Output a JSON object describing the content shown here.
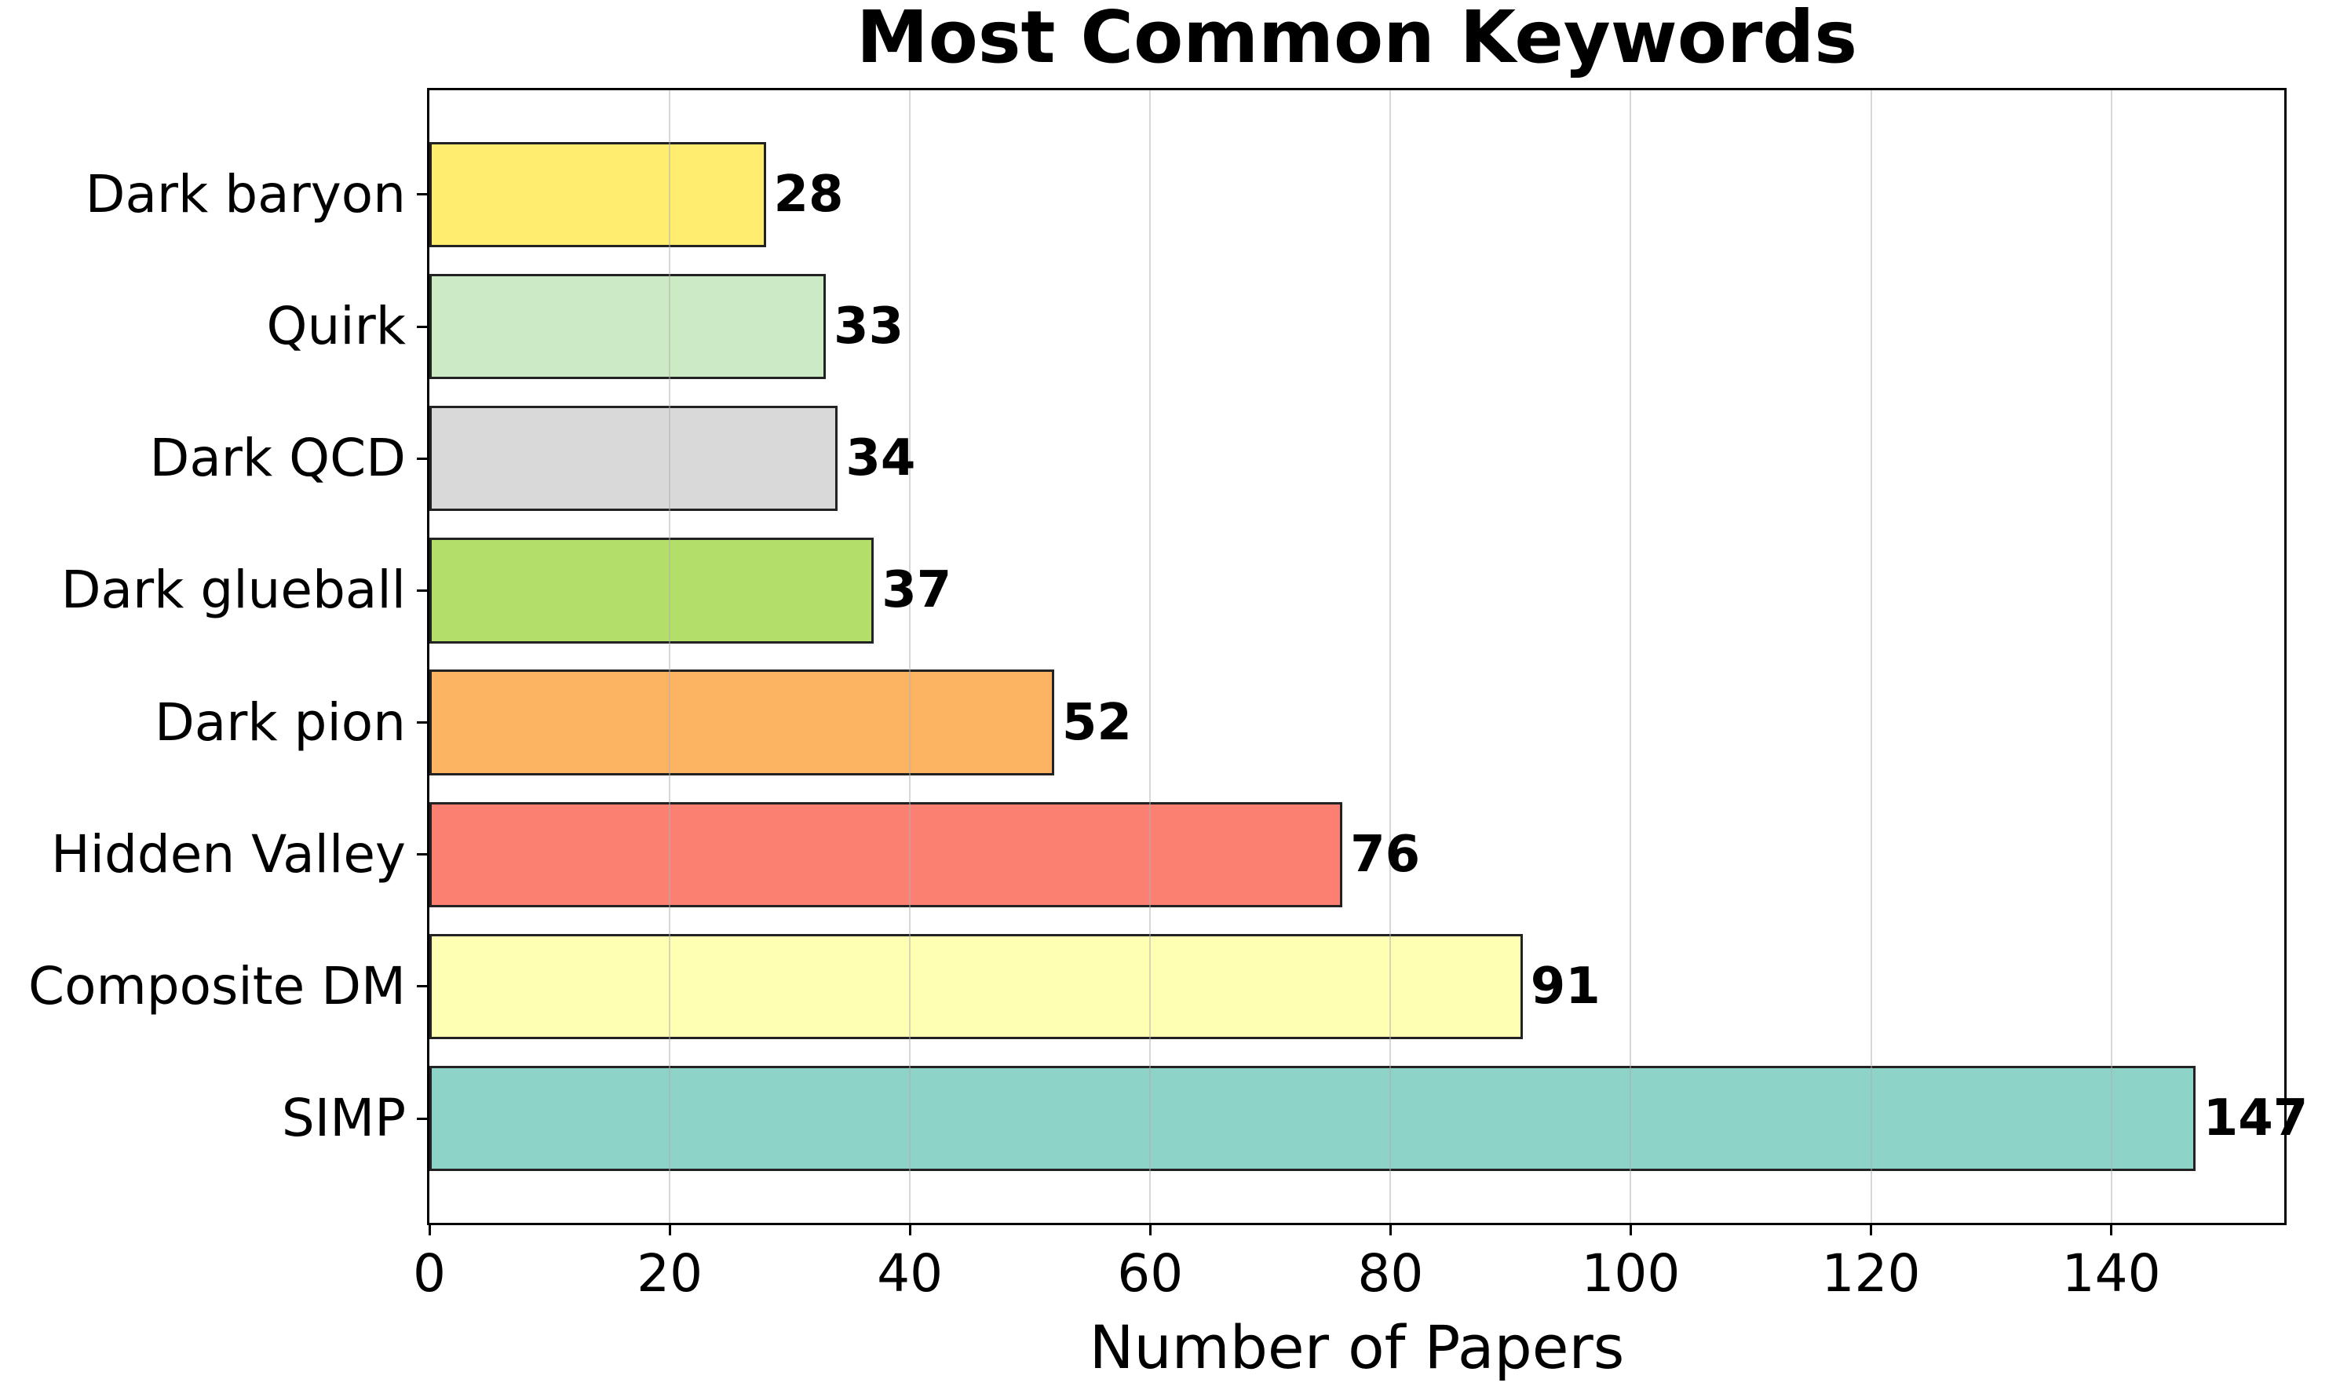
{
  "chart_data": {
    "type": "bar",
    "orientation": "horizontal",
    "title": "Most Common Keywords",
    "xlabel": "Number of Papers",
    "ylabel": "",
    "categories": [
      "Dark baryon",
      "Quirk",
      "Dark QCD",
      "Dark glueball",
      "Dark pion",
      "Hidden Valley",
      "Composite DM",
      "SIMP"
    ],
    "values": [
      28,
      33,
      34,
      37,
      52,
      76,
      91,
      147
    ],
    "value_labels": [
      "28",
      "33",
      "34",
      "37",
      "52",
      "76",
      "91",
      "147"
    ],
    "bar_colors": [
      "#ffed6f",
      "#ccebc5",
      "#d9d9d9",
      "#b3de69",
      "#fdb462",
      "#fb8072",
      "#ffffb3",
      "#8dd3c7"
    ],
    "bar_edge_color": "#222222",
    "x_ticks": [
      0,
      20,
      40,
      60,
      80,
      100,
      120,
      140
    ],
    "xlim": [
      0,
      154.4
    ],
    "grid": true,
    "grid_color": "rgba(176,176,176,0.5)",
    "legend": "none",
    "background_color": "#ffffff"
  }
}
